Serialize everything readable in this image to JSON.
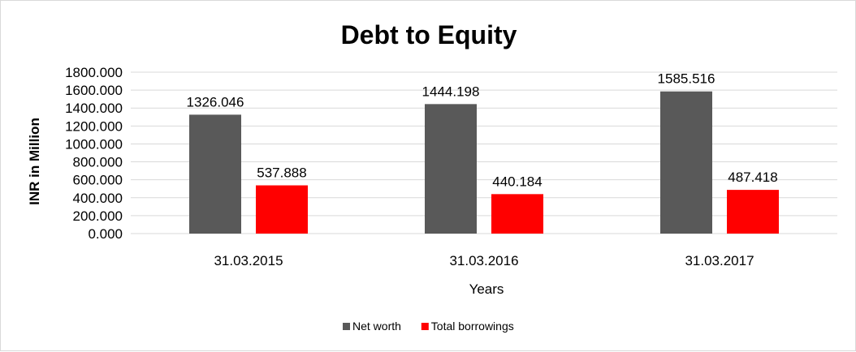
{
  "chart_data": {
    "type": "bar",
    "title": "Debt to Equity",
    "xlabel": "Years",
    "ylabel": "INR in Million",
    "categories": [
      "31.03.2015",
      "31.03.2016",
      "31.03.2017"
    ],
    "series": [
      {
        "name": "Net worth",
        "values": [
          1326.046,
          1444.198,
          1585.516
        ],
        "value_labels": [
          "1326.046",
          "1444.198",
          "1585.516"
        ],
        "color": "#595959"
      },
      {
        "name": "Total borrowings",
        "values": [
          537.888,
          440.184,
          487.418
        ],
        "value_labels": [
          "537.888",
          "440.184",
          "487.418"
        ],
        "color": "#ff0000"
      }
    ],
    "ylim": [
      0,
      1800
    ],
    "yticks": [
      "0.000",
      "200.000",
      "400.000",
      "600.000",
      "800.000",
      "1000.000",
      "1200.000",
      "1400.000",
      "1600.000",
      "1800.000"
    ],
    "grid": true,
    "legend": "bottom"
  }
}
